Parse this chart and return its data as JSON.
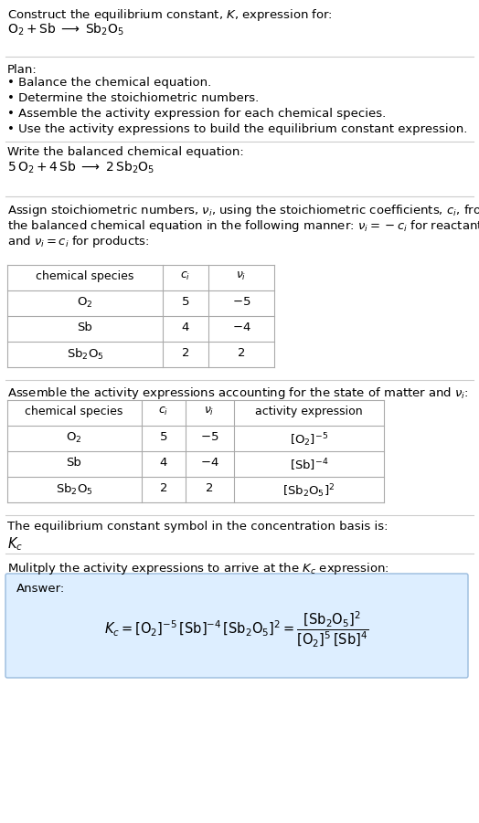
{
  "title_line1": "Construct the equilibrium constant, $K$, expression for:",
  "title_line2": "$\\mathrm{O_2 + Sb \\;\\longrightarrow\\; Sb_2O_5}$",
  "plan_header": "Plan:",
  "plan_items": [
    "• Balance the chemical equation.",
    "• Determine the stoichiometric numbers.",
    "• Assemble the activity expression for each chemical species.",
    "• Use the activity expressions to build the equilibrium constant expression."
  ],
  "balanced_header": "Write the balanced chemical equation:",
  "balanced_eq": "$\\mathrm{5\\,O_2 + 4\\,Sb \\;\\longrightarrow\\; 2\\,Sb_2O_5}$",
  "stoich_intro_lines": [
    "Assign stoichiometric numbers, $\\nu_i$, using the stoichiometric coefficients, $c_i$, from",
    "the balanced chemical equation in the following manner: $\\nu_i = -c_i$ for reactants",
    "and $\\nu_i = c_i$ for products:"
  ],
  "table1_headers": [
    "chemical species",
    "$c_i$",
    "$\\nu_i$"
  ],
  "table1_rows": [
    [
      "$\\mathrm{O_2}$",
      "5",
      "$-5$"
    ],
    [
      "Sb",
      "4",
      "$-4$"
    ],
    [
      "$\\mathrm{Sb_2O_5}$",
      "2",
      "2"
    ]
  ],
  "activity_intro": "Assemble the activity expressions accounting for the state of matter and $\\nu_i$:",
  "table2_headers": [
    "chemical species",
    "$c_i$",
    "$\\nu_i$",
    "activity expression"
  ],
  "table2_rows": [
    [
      "$\\mathrm{O_2}$",
      "5",
      "$-5$",
      "$[\\mathrm{O_2}]^{-5}$"
    ],
    [
      "Sb",
      "4",
      "$-4$",
      "$[\\mathrm{Sb}]^{-4}$"
    ],
    [
      "$\\mathrm{Sb_2O_5}$",
      "2",
      "2",
      "$[\\mathrm{Sb_2O_5}]^{2}$"
    ]
  ],
  "kc_text": "The equilibrium constant symbol in the concentration basis is:",
  "kc_symbol": "$K_c$",
  "multiply_text": "Mulitply the activity expressions to arrive at the $K_c$ expression:",
  "answer_label": "Answer:",
  "answer_eq1": "$K_c = [\\mathrm{O_2}]^{-5}\\,[\\mathrm{Sb}]^{-4}\\,[\\mathrm{Sb_2O_5}]^{2} = \\dfrac{[\\mathrm{Sb_2O_5}]^{2}}{[\\mathrm{O_2}]^{5}\\,[\\mathrm{Sb}]^{4}}$",
  "bg_color": "#ffffff",
  "answer_bg_color": "#ddeeff",
  "table_line_color": "#aaaaaa",
  "text_color": "#000000",
  "font_size": 9.5
}
